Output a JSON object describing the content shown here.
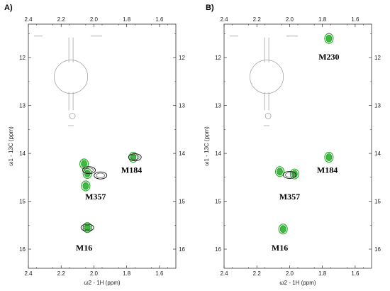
{
  "chart_data": [
    {
      "type": "scatter",
      "panel_label": "A)",
      "xlabel": "ω2 - 1H (ppm)",
      "ylabel": "ω1 - 13C (ppm)",
      "xlim": [
        2.4,
        1.5
      ],
      "ylim": [
        11.3,
        16.4
      ],
      "x_reversed": true,
      "y_reversed": true,
      "xticks": [
        "2.4",
        "2.2",
        "2.0",
        "1.8",
        "1.6"
      ],
      "yticks": [
        "12",
        "13",
        "14",
        "15",
        "16"
      ],
      "series": [
        {
          "name": "",
          "color": "#1faa1f",
          "points": [
            {
              "x": 2.06,
              "y": 14.22
            },
            {
              "x": 2.04,
              "y": 14.42
            },
            {
              "x": 2.05,
              "y": 14.68
            },
            {
              "x": 2.04,
              "y": 15.55
            },
            {
              "x": 1.76,
              "y": 14.08
            }
          ]
        },
        {
          "name": "",
          "color": "#111111",
          "points": [
            {
              "x": 2.03,
              "y": 14.35
            },
            {
              "x": 1.96,
              "y": 14.46
            },
            {
              "x": 2.04,
              "y": 15.55
            },
            {
              "x": 1.75,
              "y": 14.08
            }
          ]
        }
      ],
      "annotations": [
        {
          "text": "M184",
          "x": 1.77,
          "y": 14.35
        },
        {
          "text": "M357",
          "x": 1.99,
          "y": 14.9
        },
        {
          "text": "M16",
          "x": 2.06,
          "y": 15.97
        }
      ]
    },
    {
      "type": "scatter",
      "panel_label": "B)",
      "xlabel": "ω2 - 1H (ppm)",
      "ylabel": "ω1 - 13C (ppm)",
      "xlim": [
        2.4,
        1.5
      ],
      "ylim": [
        11.3,
        16.4
      ],
      "x_reversed": true,
      "y_reversed": true,
      "xticks": [
        "2.4",
        "2.2",
        "2.0",
        "1.8",
        "1.6"
      ],
      "yticks": [
        "12",
        "13",
        "14",
        "15",
        "16"
      ],
      "series": [
        {
          "name": "",
          "color": "#1faa1f",
          "points": [
            {
              "x": 2.06,
              "y": 14.38
            },
            {
              "x": 1.97,
              "y": 14.43
            },
            {
              "x": 2.04,
              "y": 15.58
            },
            {
              "x": 1.76,
              "y": 14.08
            },
            {
              "x": 1.76,
              "y": 11.6
            }
          ]
        },
        {
          "name": "",
          "color": "#111111",
          "points": [
            {
              "x": 2.0,
              "y": 14.45
            }
          ]
        }
      ],
      "annotations": [
        {
          "text": "M230",
          "x": 1.76,
          "y": 11.98
        },
        {
          "text": "M184",
          "x": 1.77,
          "y": 14.35
        },
        {
          "text": "M357",
          "x": 2.0,
          "y": 14.9
        },
        {
          "text": "M16",
          "x": 2.06,
          "y": 15.97
        }
      ]
    }
  ]
}
